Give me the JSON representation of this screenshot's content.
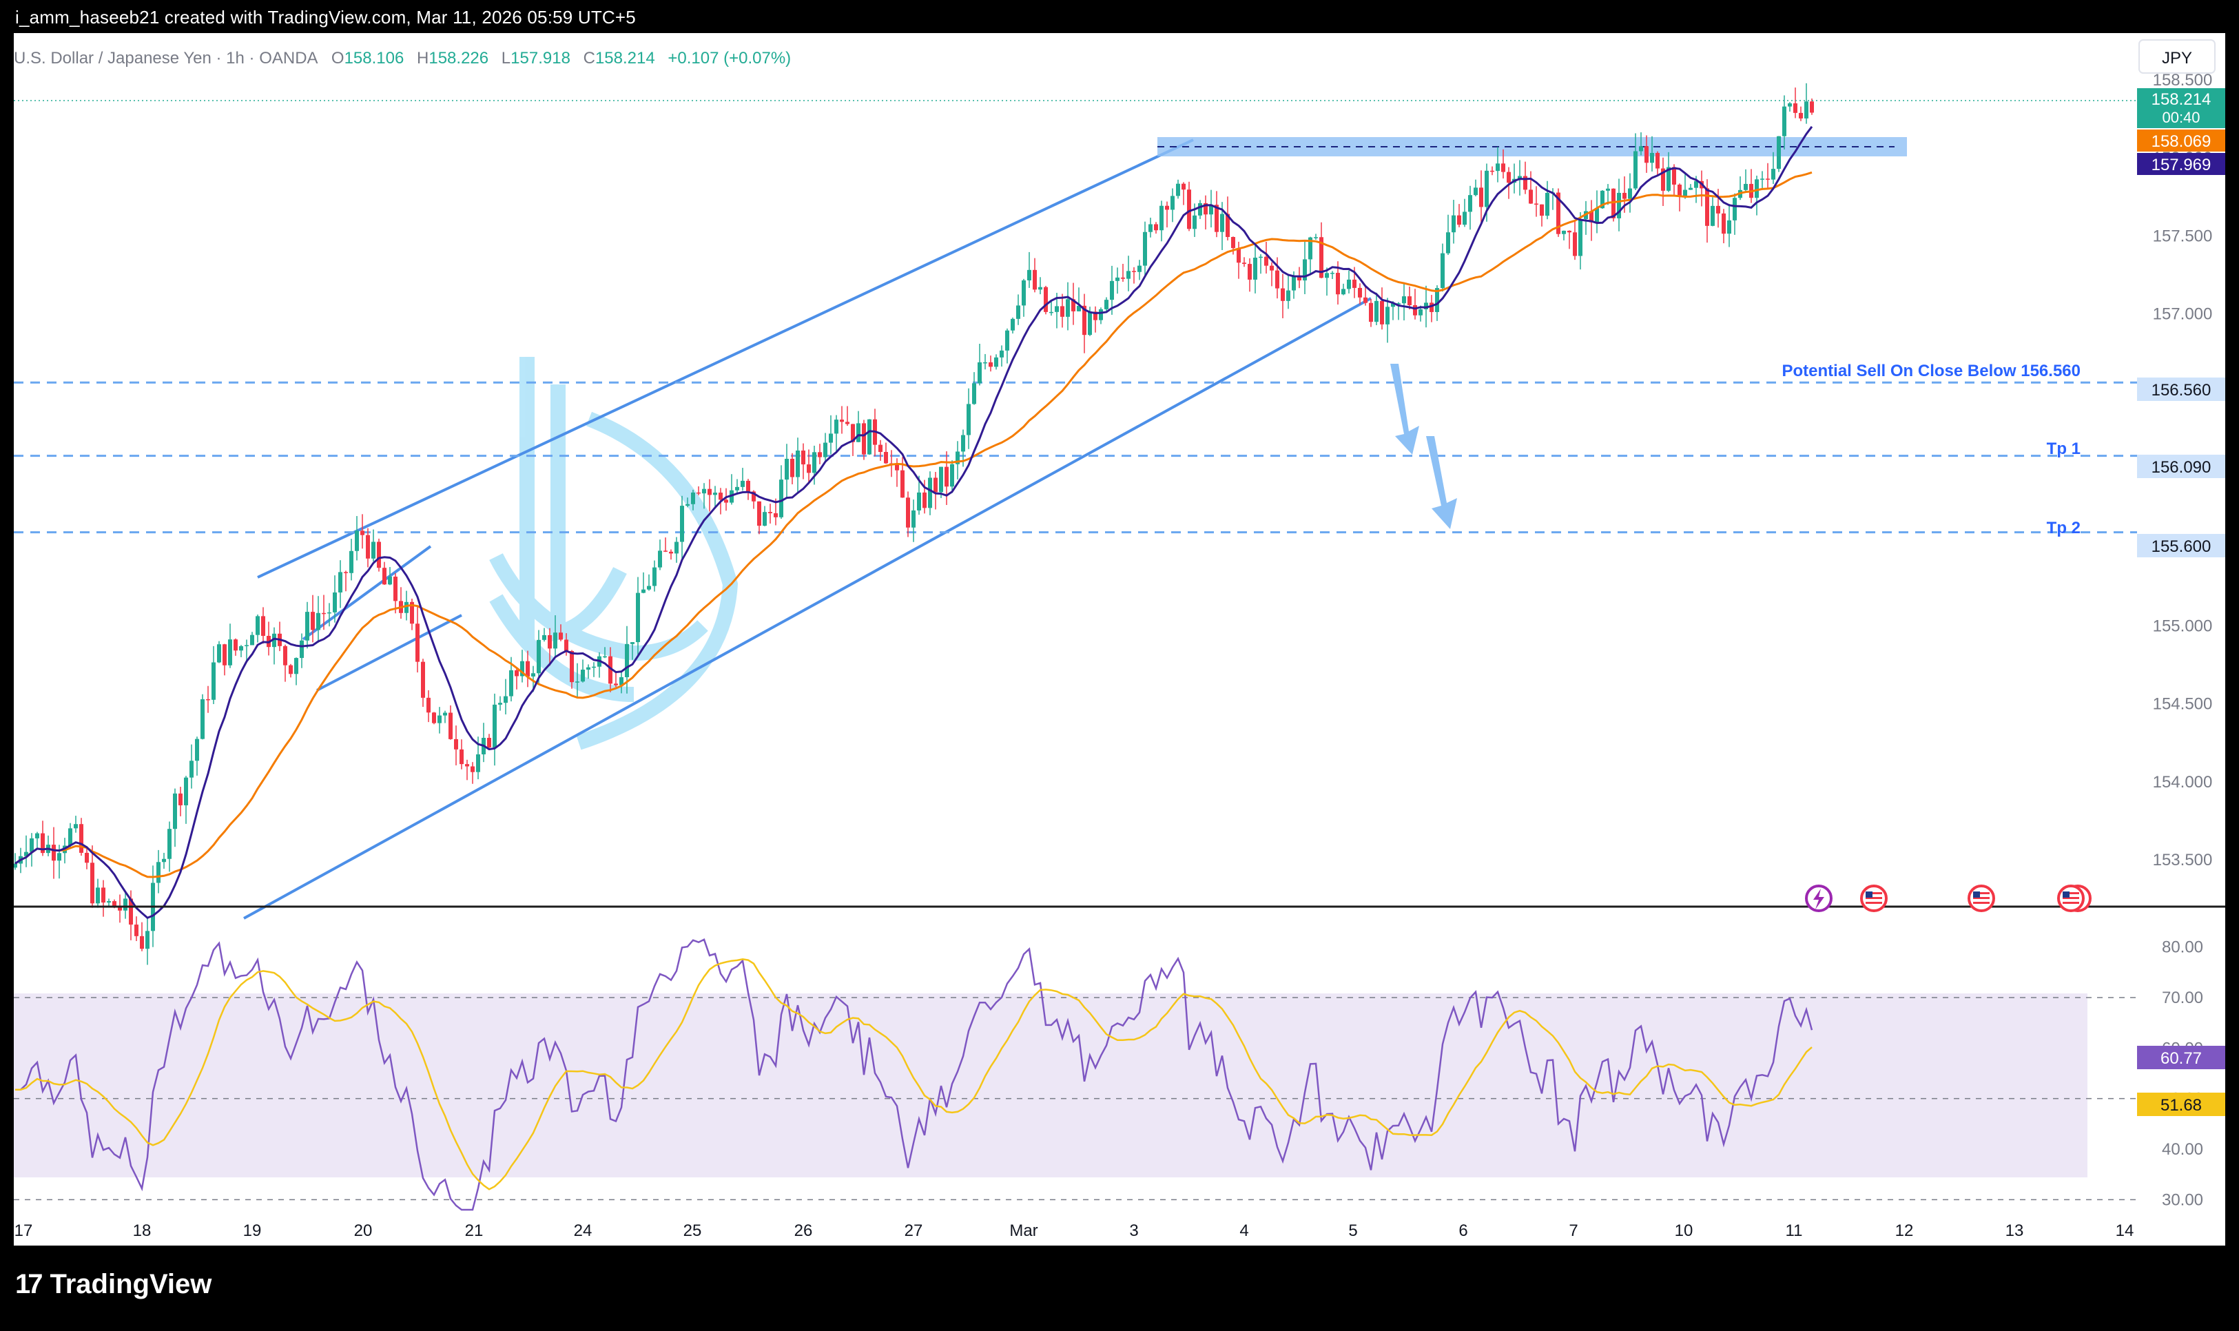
{
  "header": {
    "created_by": "i_amm_haseeb21 created with TradingView.com, Mar 11, 2026 05:59 UTC+5"
  },
  "legend": {
    "symbol": "U.S. Dollar / Japanese Yen · 1h · OANDA",
    "o_label": "O",
    "o": "158.106",
    "h_label": "H",
    "h": "158.226",
    "l_label": "L",
    "l": "157.918",
    "c_label": "C",
    "c": "158.214",
    "change": "+0.107 (+0.07%)"
  },
  "currency": "JPY",
  "price_tags": {
    "last": "158.214",
    "countdown": "00:40",
    "ma_slow": "158.069",
    "ma_fast": "157.969",
    "sell_level": "156.560",
    "tp1": "156.090",
    "tp2": "155.600",
    "rsi": "60.77",
    "rsi_ma": "51.68"
  },
  "annotations": {
    "sell_label": "Potential Sell On Close Below 156.560",
    "tp1_label": "Tp 1",
    "tp2_label": "Tp 2"
  },
  "footer": {
    "brand": "TradingView"
  },
  "colors": {
    "bull": "#22ab94",
    "bear": "#f23645",
    "ma_fast": "#311b92",
    "ma_slow": "#f57c00",
    "channel": "#4c8fe8",
    "level": "#6aa7f0",
    "rsi": "#7e57c2",
    "rsi_ma": "#f5c518",
    "rsi_band": "#ede7f6",
    "zone": "#90c1f5"
  },
  "chart_data": {
    "type": "candlestick",
    "title": "U.S. Dollar / Japanese Yen · 1h · OANDA",
    "ylim": [
      153.2,
      158.8
    ],
    "yticks": [
      "158.500",
      "158.000",
      "157.500",
      "157.000",
      "156.500",
      "156.000",
      "155.500",
      "155.000",
      "154.500",
      "154.000",
      "153.500"
    ],
    "x_dates": [
      "17",
      "18",
      "19",
      "20",
      "21",
      "24",
      "25",
      "26",
      "27",
      "Mar",
      "3",
      "4",
      "5",
      "6",
      "7",
      "10",
      "11",
      "12",
      "13",
      "14"
    ],
    "trend_points": {
      "x": [
        "17",
        "18",
        "19",
        "20",
        "21",
        "24",
        "25",
        "26",
        "27",
        "Mar",
        "3",
        "4",
        "5",
        "6",
        "7",
        "10",
        "11"
      ],
      "close": [
        153.45,
        153.3,
        155.0,
        155.3,
        154.3,
        154.8,
        155.6,
        156.2,
        155.9,
        156.9,
        157.4,
        157.6,
        156.9,
        157.6,
        157.8,
        157.7,
        158.214
      ]
    },
    "levels": [
      {
        "label": "Potential Sell On Close Below 156.560",
        "value": 156.56
      },
      {
        "label": "Tp 1",
        "value": 156.09
      },
      {
        "label": "Tp 2",
        "value": 155.6
      }
    ],
    "resistance_zone": [
      157.9,
      158.0
    ],
    "rsi": {
      "ylim": [
        25,
        85
      ],
      "yticks": [
        "80.00",
        "70.00",
        "60.00",
        "50.00",
        "40.00",
        "30.00"
      ],
      "levels": [
        30,
        50,
        70
      ],
      "last": 60.77,
      "ma_last": 51.68
    }
  }
}
